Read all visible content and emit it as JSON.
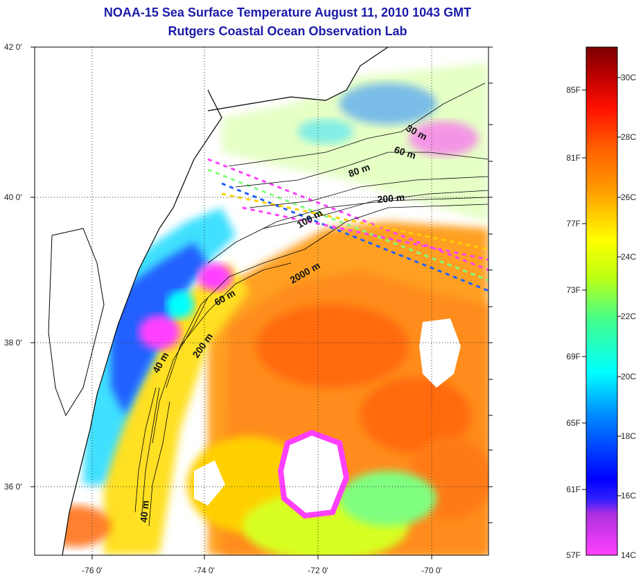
{
  "title": {
    "line1": "NOAA-15 Sea Surface Temperature August 11, 2010 1043 GMT",
    "line2": "Rutgers Coastal Ocean Observation Lab"
  },
  "axes": {
    "lat_labels": [
      "42 0'",
      "40 0'",
      "38 0'",
      "36 0'"
    ],
    "lon_labels": [
      "-76 0'",
      "-74 0'",
      "-72 0'",
      "-70 0'"
    ]
  },
  "isobaths": [
    "30 m",
    "60 m",
    "80 m",
    "200 m",
    "100 m",
    "2000 m",
    "60 m",
    "200 m",
    "40 m",
    "40 m"
  ],
  "colorbar": {
    "fahrenheit": [
      "85F",
      "81F",
      "77F",
      "73F",
      "69F",
      "65F",
      "61F",
      "57F"
    ],
    "celsius": [
      "30C",
      "28C",
      "26C",
      "24C",
      "22C",
      "20C",
      "18C",
      "16C",
      "14C"
    ],
    "colors": [
      "#ff40ff",
      "#7030c0",
      "#0000ff",
      "#0080ff",
      "#00ffff",
      "#40ff80",
      "#c0ff00",
      "#ffff00",
      "#ffa000",
      "#ff6000",
      "#ff0000",
      "#c00000",
      "#800000"
    ]
  }
}
